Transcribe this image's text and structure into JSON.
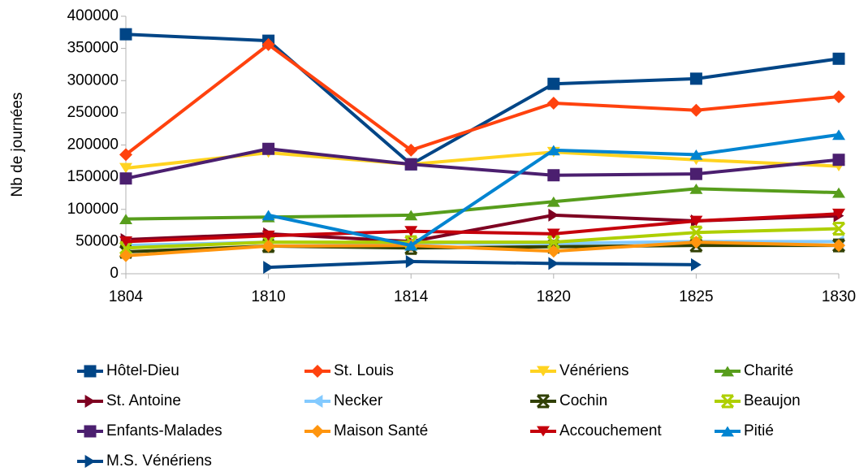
{
  "chart_data": {
    "type": "line",
    "ylabel": "Nb de journées",
    "categories": [
      "1804",
      "1810",
      "1814",
      "1820",
      "1825",
      "1830"
    ],
    "ylim": [
      0,
      400000
    ],
    "yticks": [
      0,
      50000,
      100000,
      150000,
      200000,
      250000,
      300000,
      350000,
      400000
    ],
    "grid": false,
    "legend": "bottom",
    "series": [
      {
        "name": "Hôtel-Dieu",
        "color": "#004586",
        "marker": "square",
        "values": [
          372000,
          362000,
          170000,
          295000,
          303000,
          334000
        ]
      },
      {
        "name": "St. Louis",
        "color": "#ff420e",
        "marker": "diamond",
        "values": [
          185000,
          356000,
          192000,
          265000,
          254000,
          275000
        ]
      },
      {
        "name": "Vénériens",
        "color": "#ffd320",
        "marker": "triangle-down",
        "values": [
          164000,
          188000,
          170000,
          189000,
          177000,
          167000
        ]
      },
      {
        "name": "Charité",
        "color": "#579d1c",
        "marker": "triangle-up",
        "values": [
          85000,
          88000,
          91000,
          112000,
          132000,
          126000
        ]
      },
      {
        "name": "St. Antoine",
        "color": "#7e0021",
        "marker": "triangle-right",
        "values": [
          53000,
          62000,
          50000,
          91000,
          82000,
          90000
        ]
      },
      {
        "name": "Necker",
        "color": "#83caff",
        "marker": "triangle-left",
        "values": [
          44000,
          49000,
          48000,
          47000,
          50000,
          50000
        ]
      },
      {
        "name": "Cochin",
        "color": "#314004",
        "marker": "x",
        "values": [
          34000,
          43000,
          40000,
          42000,
          44000,
          44000
        ]
      },
      {
        "name": "Beaujon",
        "color": "#aecf00",
        "marker": "x",
        "values": [
          40000,
          49000,
          49000,
          49000,
          64000,
          70000
        ]
      },
      {
        "name": "Enfants-Malades",
        "color": "#4b1f6f",
        "marker": "square",
        "values": [
          148000,
          194000,
          170000,
          153000,
          155000,
          177000
        ]
      },
      {
        "name": "Maison Santé",
        "color": "#ff950e",
        "marker": "diamond",
        "values": [
          28000,
          43000,
          44000,
          35000,
          49000,
          44000
        ]
      },
      {
        "name": "Accouchement",
        "color": "#c5000b",
        "marker": "triangle-down",
        "values": [
          50000,
          59000,
          66000,
          62000,
          82000,
          93000
        ]
      },
      {
        "name": "Pitié",
        "color": "#0084d1",
        "marker": "triangle-up",
        "values": [
          null,
          91000,
          44000,
          192000,
          185000,
          216000
        ]
      },
      {
        "name": "M.S. Vénériens",
        "color": "#004586",
        "marker": "triangle-right",
        "values": [
          null,
          10000,
          19000,
          16000,
          14000,
          null
        ]
      }
    ]
  }
}
